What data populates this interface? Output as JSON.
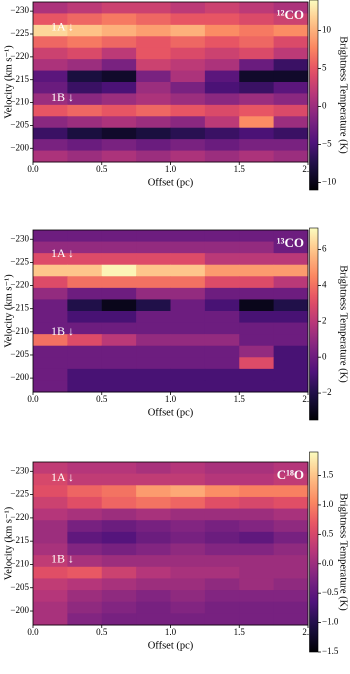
{
  "chart_data": [
    {
      "type": "heatmap",
      "colormap": "magma",
      "label": "¹²CO",
      "annotations": [
        "1A ↓",
        "1B ↓"
      ],
      "xlabel": "Offset (pc)",
      "ylabel": "Velocity (km s⁻¹)",
      "colorbar_label": "Brightness Temperature (K)",
      "xlim": [
        0,
        2
      ],
      "ylim": [
        -197,
        -232
      ],
      "xticks": [
        {
          "value": 0,
          "label": "0.0"
        },
        0.5,
        {
          "value": 1,
          "label": "1.0"
        },
        1.5,
        {
          "value": 2,
          "label": "2.0"
        }
      ],
      "yticks": [
        {
          "value": -230,
          "label": "−230"
        },
        {
          "value": -225,
          "label": "−225"
        },
        {
          "value": -220,
          "label": "−220"
        },
        {
          "value": -215,
          "label": "−215"
        },
        {
          "value": -210,
          "label": "−210"
        },
        {
          "value": -205,
          "label": "−205"
        },
        {
          "value": -200,
          "label": "−200"
        }
      ],
      "zlim": [
        -11,
        14
      ],
      "zticks": [
        {
          "value": -10,
          "label": "−10"
        },
        {
          "value": -5,
          "label": "−5"
        },
        0,
        5,
        10
      ],
      "xbins": [
        0,
        0.25,
        0.5,
        0.75,
        1,
        1.25,
        1.5,
        1.75,
        2
      ],
      "ybins": [
        -232,
        -229.5,
        -227,
        -224.5,
        -222,
        -219.5,
        -217,
        -214.5,
        -212,
        -209.5,
        -207,
        -204.5,
        -202,
        -199.5,
        -197
      ],
      "z": [
        [
          1,
          2,
          3,
          3,
          2,
          3,
          2,
          1
        ],
        [
          5,
          6,
          7,
          6,
          5,
          5,
          4,
          3
        ],
        [
          12,
          11,
          10,
          9,
          10,
          8,
          7,
          8
        ],
        [
          6,
          7,
          6,
          5,
          6,
          5,
          6,
          4
        ],
        [
          3,
          4,
          2,
          5,
          4,
          3,
          4,
          2
        ],
        [
          1,
          0,
          -2,
          3,
          2,
          1,
          -3,
          -6
        ],
        [
          -4,
          -8,
          -9,
          -2,
          1,
          -4,
          -9,
          -9
        ],
        [
          -3,
          -6,
          -5,
          0,
          -2,
          -5,
          -6,
          -4
        ],
        [
          0,
          -1,
          0,
          1,
          0,
          -1,
          0,
          -1
        ],
        [
          5,
          6,
          5,
          6,
          5,
          4,
          5,
          4
        ],
        [
          -1,
          0,
          1,
          0,
          -1,
          2,
          8,
          0
        ],
        [
          -6,
          -8,
          -9,
          -8,
          -7,
          -6,
          -5,
          -6
        ],
        [
          -2,
          -3,
          -2,
          -3,
          -2,
          -3,
          -2,
          -2
        ],
        [
          1,
          0,
          1,
          0,
          1,
          0,
          1,
          0
        ]
      ]
    },
    {
      "type": "heatmap",
      "colormap": "magma",
      "label": "¹³CO",
      "annotations": [
        "1A ↓",
        "1B ↓"
      ],
      "xlabel": "Offset (pc)",
      "ylabel": "Velocity (km s⁻¹)",
      "colorbar_label": "Brightness Temperature (K)",
      "xlim": [
        0,
        2
      ],
      "ylim": [
        -197,
        -232
      ],
      "xticks": [
        {
          "value": 0,
          "label": "0.0"
        },
        0.5,
        {
          "value": 1,
          "label": "1.0"
        },
        1.5,
        {
          "value": 2,
          "label": "2.0"
        }
      ],
      "yticks": [
        {
          "value": -230,
          "label": "−230"
        },
        {
          "value": -225,
          "label": "−225"
        },
        {
          "value": -220,
          "label": "−220"
        },
        {
          "value": -215,
          "label": "−215"
        },
        {
          "value": -210,
          "label": "−210"
        },
        {
          "value": -205,
          "label": "−205"
        },
        {
          "value": -200,
          "label": "−200"
        }
      ],
      "zlim": [
        -3.5,
        7.2
      ],
      "zticks": [
        {
          "value": -2,
          "label": "−2"
        },
        0,
        2,
        4,
        6
      ],
      "xbins": [
        0,
        0.25,
        0.5,
        0.75,
        1,
        1.25,
        1.5,
        1.75,
        2
      ],
      "ybins": [
        -232,
        -229.5,
        -227,
        -224.5,
        -222,
        -219.5,
        -217,
        -214.5,
        -212,
        -209.5,
        -207,
        -204.5,
        -202,
        -199.5,
        -197
      ],
      "z": [
        [
          0,
          0,
          0,
          0,
          0,
          0,
          0,
          0
        ],
        [
          1,
          1,
          1,
          1,
          1,
          1,
          1,
          0
        ],
        [
          3,
          3,
          3,
          3,
          3,
          2,
          2,
          2
        ],
        [
          6,
          6,
          7,
          6,
          6,
          5,
          5,
          5
        ],
        [
          3,
          4,
          4,
          4,
          4,
          3,
          3,
          2
        ],
        [
          1,
          0,
          0,
          1,
          1,
          0,
          0,
          0
        ],
        [
          0,
          -2,
          -3,
          -2,
          0,
          -1,
          -3,
          -2
        ],
        [
          0,
          -1,
          -1,
          0,
          0,
          0,
          -1,
          -1
        ],
        [
          0,
          0,
          0,
          0,
          0,
          0,
          0,
          0
        ],
        [
          4,
          3,
          2,
          1,
          1,
          1,
          0,
          0
        ],
        [
          0,
          0,
          0,
          0,
          0,
          0,
          1,
          -1
        ],
        [
          0,
          0,
          0,
          0,
          0,
          0,
          3,
          -1
        ],
        [
          0,
          -1,
          -1,
          -1,
          -1,
          -1,
          -1,
          -1
        ],
        [
          0,
          -1,
          -1,
          -1,
          -1,
          -1,
          -1,
          -1
        ]
      ]
    },
    {
      "type": "heatmap",
      "colormap": "magma",
      "label": "C¹⁸O",
      "annotations": [
        "1A ↓",
        "1B ↓"
      ],
      "xlabel": "Offset (pc)",
      "ylabel": "Velocity (km s⁻¹)",
      "colorbar_label": "Brightness Temperature (K)",
      "xlim": [
        0,
        2
      ],
      "ylim": [
        -197,
        -232
      ],
      "xticks": [
        {
          "value": 0,
          "label": "0.0"
        },
        0.5,
        {
          "value": 1,
          "label": "1.0"
        },
        1.5,
        {
          "value": 2,
          "label": "2.0"
        }
      ],
      "yticks": [
        {
          "value": -230,
          "label": "−230"
        },
        {
          "value": -225,
          "label": "−225"
        },
        {
          "value": -220,
          "label": "−220"
        },
        {
          "value": -215,
          "label": "−215"
        },
        {
          "value": -210,
          "label": "−210"
        },
        {
          "value": -205,
          "label": "−205"
        },
        {
          "value": -200,
          "label": "−200"
        }
      ],
      "zlim": [
        -1.5,
        1.9
      ],
      "zticks": [
        {
          "value": -1.5,
          "label": "−1.5"
        },
        {
          "value": -1,
          "label": "−1.0"
        },
        {
          "value": -0.5,
          "label": "−0.5"
        },
        {
          "value": 0,
          "label": "0.0"
        },
        0.5,
        {
          "value": 1,
          "label": "1.0"
        },
        1.5
      ],
      "xbins": [
        0,
        0.25,
        0.5,
        0.75,
        1,
        1.25,
        1.5,
        1.75,
        2
      ],
      "ybins": [
        -232,
        -229.5,
        -227,
        -224.5,
        -222,
        -219.5,
        -217,
        -214.5,
        -212,
        -209.5,
        -207,
        -204.5,
        -202,
        -199.5,
        -197
      ],
      "z": [
        [
          0.3,
          0.2,
          0.2,
          0.1,
          0.2,
          0.1,
          0.1,
          0.2
        ],
        [
          0.5,
          0.3,
          0.3,
          0.3,
          0.3,
          0.2,
          0.2,
          0.3
        ],
        [
          0.6,
          0.8,
          0.9,
          1.2,
          1.3,
          1.1,
          1.0,
          1.0
        ],
        [
          0.4,
          0.6,
          0.8,
          0.9,
          0.8,
          0.6,
          0.5,
          0.6
        ],
        [
          0.2,
          0.1,
          0.0,
          0.1,
          0.0,
          0.0,
          0.0,
          0.1
        ],
        [
          0.0,
          -0.3,
          -0.4,
          -0.3,
          -0.2,
          -0.3,
          -0.2,
          -0.1
        ],
        [
          0.0,
          -0.5,
          -0.6,
          -0.4,
          -0.3,
          -0.4,
          -0.5,
          -0.3
        ],
        [
          0.1,
          -0.2,
          -0.3,
          -0.2,
          -0.1,
          -0.2,
          -0.2,
          -0.1
        ],
        [
          0.3,
          0.1,
          0.0,
          0.0,
          0.0,
          0.0,
          0.0,
          0.0
        ],
        [
          0.6,
          0.7,
          0.4,
          0.2,
          0.1,
          0.1,
          0.0,
          0.0
        ],
        [
          0.3,
          0.2,
          0.1,
          0.0,
          0.0,
          -0.1,
          0.0,
          -0.1
        ],
        [
          0.2,
          0.0,
          -0.1,
          -0.2,
          -0.1,
          -0.2,
          -0.2,
          -0.2
        ],
        [
          0.1,
          -0.1,
          -0.2,
          -0.3,
          -0.2,
          -0.3,
          -0.3,
          -0.3
        ],
        [
          0.1,
          -0.2,
          -0.3,
          -0.3,
          -0.3,
          -0.3,
          -0.3,
          -0.3
        ]
      ]
    }
  ]
}
